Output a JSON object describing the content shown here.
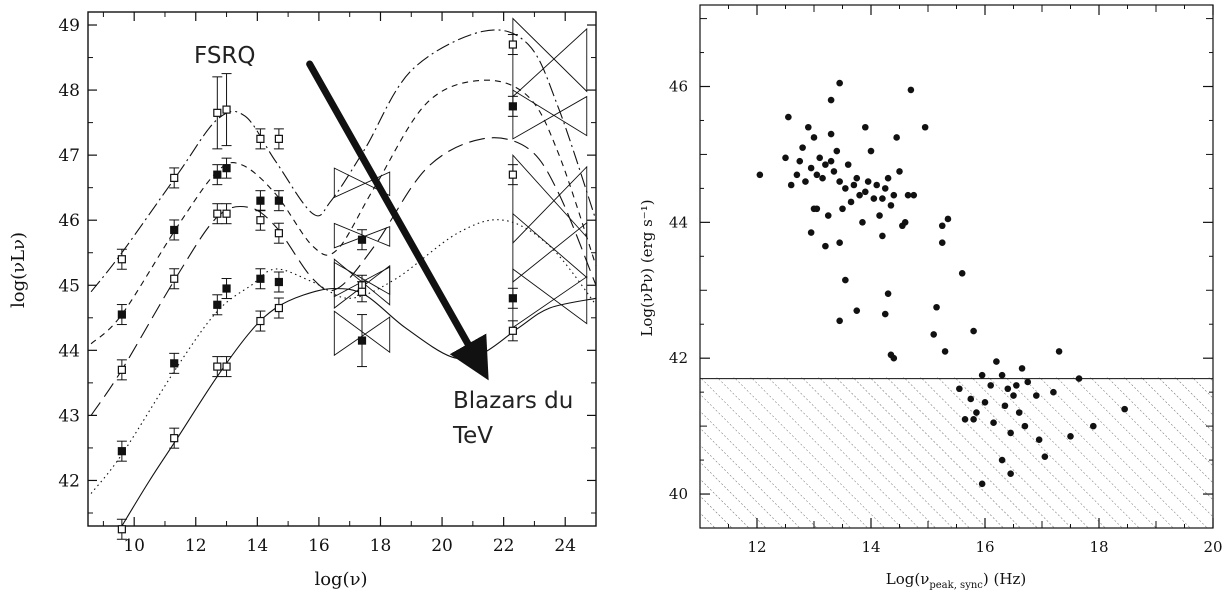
{
  "chart_data": [
    {
      "type": "line",
      "title": "",
      "xlabel": "log(ν)",
      "ylabel": "log(νLν)",
      "xlim": [
        8.5,
        25
      ],
      "ylim": [
        41.3,
        49.2
      ],
      "x_ticks": [
        "10",
        "12",
        "14",
        "16",
        "18",
        "20",
        "22",
        "24"
      ],
      "y_ticks": [
        "42",
        "43",
        "44",
        "45",
        "46",
        "47",
        "48",
        "49"
      ],
      "annotations": [
        "FSRQ",
        "Blazars du",
        "TeV"
      ],
      "arrow": {
        "from": [
          15.7,
          48.4
        ],
        "to": [
          21.2,
          43.8
        ]
      },
      "series": [
        {
          "style": "dash-dot",
          "marker": "open",
          "x": [
            8.6,
            9.6,
            11.4,
            12.7,
            13.6,
            14.6,
            15.8,
            16.4,
            17.5,
            19.0,
            21.3,
            22.8,
            23.8,
            25.0
          ],
          "y": [
            44.9,
            45.5,
            46.7,
            47.55,
            47.6,
            46.9,
            46.1,
            46.3,
            47.1,
            48.3,
            48.9,
            48.7,
            47.7,
            46.0
          ],
          "points": [
            [
              9.6,
              45.4
            ],
            [
              11.3,
              46.65
            ],
            [
              12.7,
              47.65
            ],
            [
              13.0,
              47.7
            ],
            [
              14.1,
              47.25
            ],
            [
              14.7,
              47.25
            ],
            [
              22.3,
              48.7
            ]
          ]
        },
        {
          "style": "short-dash",
          "marker": "filled",
          "x": [
            8.6,
            9.6,
            11.4,
            12.7,
            13.5,
            14.6,
            15.8,
            16.6,
            17.8,
            19.5,
            21.3,
            22.8,
            23.8,
            25.0
          ],
          "y": [
            44.1,
            44.55,
            45.9,
            46.75,
            46.85,
            46.4,
            45.6,
            45.55,
            46.5,
            47.8,
            48.15,
            47.9,
            47.0,
            45.3
          ],
          "points": [
            [
              9.6,
              44.55
            ],
            [
              11.3,
              45.85
            ],
            [
              12.7,
              46.7
            ],
            [
              13.0,
              46.8
            ],
            [
              14.1,
              46.3
            ],
            [
              14.7,
              46.3
            ],
            [
              17.4,
              45.7
            ],
            [
              22.3,
              47.75
            ]
          ]
        },
        {
          "style": "long-dash",
          "marker": "open",
          "x": [
            8.6,
            9.6,
            11.4,
            12.7,
            13.7,
            14.6,
            15.8,
            16.6,
            17.8,
            19.5,
            21.3,
            22.8,
            23.8,
            25.0
          ],
          "y": [
            43.0,
            43.7,
            45.15,
            46.05,
            46.2,
            45.9,
            45.1,
            44.95,
            45.6,
            46.8,
            47.25,
            47.1,
            46.4,
            45.0
          ],
          "points": [
            [
              9.6,
              43.7
            ],
            [
              11.3,
              45.1
            ],
            [
              12.7,
              46.1
            ],
            [
              13.0,
              46.1
            ],
            [
              14.1,
              46.0
            ],
            [
              14.7,
              45.8
            ],
            [
              17.4,
              45.0
            ],
            [
              22.3,
              46.7
            ]
          ]
        },
        {
          "style": "dotted",
          "marker": "filled",
          "x": [
            8.6,
            9.6,
            11.4,
            12.7,
            13.8,
            14.6,
            15.8,
            17.0,
            18.5,
            20.5,
            22.0,
            23.5,
            25.0
          ],
          "y": [
            41.8,
            42.4,
            43.75,
            44.6,
            45.0,
            45.25,
            45.05,
            44.8,
            45.1,
            45.8,
            46.0,
            45.6,
            44.7
          ],
          "points": [
            [
              9.6,
              42.45
            ],
            [
              11.3,
              43.8
            ],
            [
              12.7,
              44.7
            ],
            [
              13.0,
              44.95
            ],
            [
              14.1,
              45.1
            ],
            [
              14.7,
              45.05
            ],
            [
              17.4,
              44.15
            ],
            [
              22.3,
              44.8
            ]
          ]
        },
        {
          "style": "solid",
          "marker": "open",
          "x": [
            9.6,
            10.5,
            11.4,
            12.7,
            13.8,
            14.6,
            15.5,
            16.5,
            17.5,
            18.8,
            20.3,
            21.3,
            22.5,
            23.5,
            25.0
          ],
          "y": [
            41.3,
            42.0,
            42.65,
            43.6,
            44.3,
            44.65,
            44.85,
            44.95,
            44.85,
            44.35,
            43.9,
            43.95,
            44.35,
            44.65,
            44.8
          ],
          "points": [
            [
              9.6,
              41.25
            ],
            [
              11.3,
              42.65
            ],
            [
              12.7,
              43.75
            ],
            [
              13.0,
              43.75
            ],
            [
              14.1,
              44.45
            ],
            [
              14.7,
              44.65
            ],
            [
              17.4,
              44.9
            ],
            [
              22.3,
              44.3
            ]
          ]
        }
      ]
    },
    {
      "type": "scatter",
      "title": "",
      "xlabel": "Log(ν",
      "xlabel_sub": "peak, sync",
      "xlabel_unit": ") (Hz)",
      "ylabel": "Log(νPν) (erg s⁻¹)",
      "xlim": [
        11,
        20
      ],
      "ylim": [
        39.5,
        47.2
      ],
      "x_ticks": [
        "12",
        "14",
        "16",
        "18",
        "20"
      ],
      "y_ticks": [
        "40",
        "42",
        "44",
        "46"
      ],
      "threshold_y": 41.7,
      "points": [
        [
          12.05,
          44.7
        ],
        [
          12.5,
          44.95
        ],
        [
          12.55,
          45.55
        ],
        [
          12.6,
          44.55
        ],
        [
          12.7,
          44.7
        ],
        [
          12.75,
          44.9
        ],
        [
          12.8,
          45.1
        ],
        [
          12.85,
          44.6
        ],
        [
          12.9,
          45.4
        ],
        [
          12.95,
          44.8
        ],
        [
          13.0,
          44.2
        ],
        [
          13.0,
          45.25
        ],
        [
          13.05,
          44.7
        ],
        [
          13.1,
          44.95
        ],
        [
          13.15,
          44.65
        ],
        [
          13.2,
          44.85
        ],
        [
          13.25,
          44.1
        ],
        [
          13.3,
          44.9
        ],
        [
          13.3,
          45.3
        ],
        [
          13.35,
          44.75
        ],
        [
          13.4,
          45.05
        ],
        [
          13.45,
          44.6
        ],
        [
          13.5,
          44.2
        ],
        [
          13.55,
          44.5
        ],
        [
          13.6,
          44.85
        ],
        [
          13.65,
          44.3
        ],
        [
          13.7,
          44.55
        ],
        [
          13.75,
          44.65
        ],
        [
          13.8,
          44.4
        ],
        [
          13.85,
          44.0
        ],
        [
          13.9,
          44.45
        ],
        [
          13.95,
          44.6
        ],
        [
          14.0,
          45.05
        ],
        [
          14.05,
          44.35
        ],
        [
          14.1,
          44.55
        ],
        [
          14.15,
          44.1
        ],
        [
          14.2,
          43.8
        ],
        [
          14.25,
          44.5
        ],
        [
          14.3,
          44.65
        ],
        [
          14.35,
          44.25
        ],
        [
          14.4,
          44.4
        ],
        [
          14.45,
          45.25
        ],
        [
          14.5,
          44.75
        ],
        [
          14.55,
          43.95
        ],
        [
          14.6,
          44.0
        ],
        [
          14.65,
          44.4
        ],
        [
          12.95,
          43.85
        ],
        [
          13.2,
          43.65
        ],
        [
          13.05,
          44.2
        ],
        [
          13.45,
          43.7
        ],
        [
          13.55,
          43.15
        ],
        [
          13.3,
          45.8
        ],
        [
          13.45,
          46.05
        ],
        [
          13.9,
          45.4
        ],
        [
          14.7,
          45.95
        ],
        [
          14.95,
          45.4
        ],
        [
          15.35,
          44.05
        ],
        [
          15.25,
          43.95
        ],
        [
          15.25,
          43.7
        ],
        [
          13.75,
          42.7
        ],
        [
          13.45,
          42.55
        ],
        [
          14.25,
          42.65
        ],
        [
          14.3,
          42.95
        ],
        [
          14.4,
          42.0
        ],
        [
          14.35,
          42.05
        ],
        [
          15.6,
          43.25
        ],
        [
          15.1,
          42.35
        ],
        [
          15.3,
          42.1
        ],
        [
          15.15,
          42.75
        ],
        [
          15.8,
          42.4
        ],
        [
          15.95,
          41.75
        ],
        [
          16.1,
          41.6
        ],
        [
          16.2,
          41.95
        ],
        [
          16.3,
          41.75
        ],
        [
          16.4,
          41.55
        ],
        [
          16.5,
          41.45
        ],
        [
          16.55,
          41.6
        ],
        [
          16.65,
          41.85
        ],
        [
          16.75,
          41.65
        ],
        [
          15.55,
          41.55
        ],
        [
          15.75,
          41.4
        ],
        [
          15.85,
          41.2
        ],
        [
          16.0,
          41.35
        ],
        [
          16.15,
          41.05
        ],
        [
          16.35,
          41.3
        ],
        [
          16.45,
          40.9
        ],
        [
          16.6,
          41.2
        ],
        [
          16.7,
          41.0
        ],
        [
          16.9,
          41.45
        ],
        [
          16.95,
          40.8
        ],
        [
          17.05,
          40.55
        ],
        [
          17.2,
          41.5
        ],
        [
          17.5,
          40.85
        ],
        [
          17.9,
          41.0
        ],
        [
          17.65,
          41.7
        ],
        [
          18.45,
          41.25
        ],
        [
          15.65,
          41.1
        ],
        [
          15.8,
          41.1
        ],
        [
          16.3,
          40.5
        ],
        [
          16.45,
          40.3
        ],
        [
          15.95,
          40.15
        ],
        [
          17.3,
          42.1
        ],
        [
          14.75,
          44.4
        ],
        [
          14.2,
          44.35
        ]
      ]
    }
  ]
}
